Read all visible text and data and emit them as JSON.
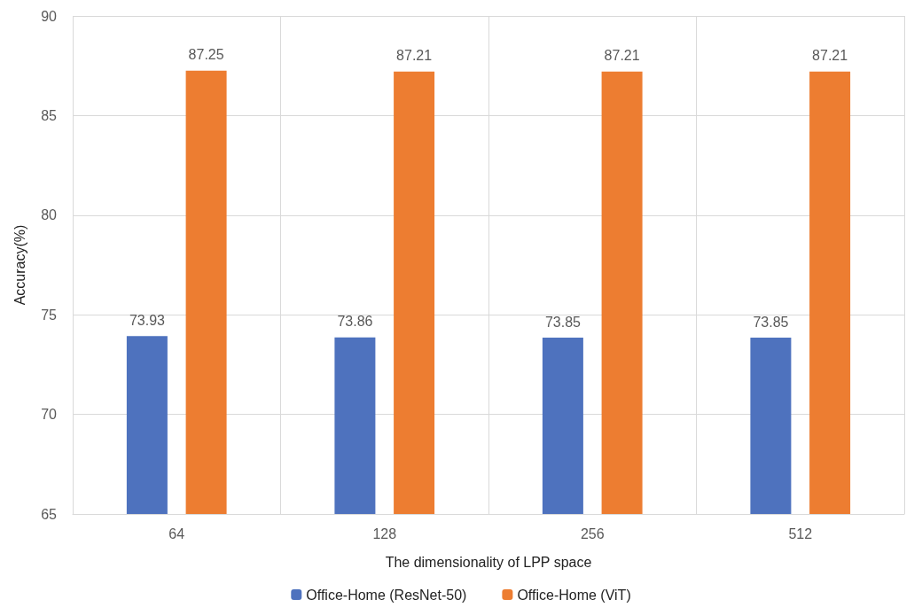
{
  "chart_data": {
    "type": "bar",
    "xlabel": "The dimensionality of LPP space",
    "ylabel": "Accuracy(%)",
    "categories": [
      "64",
      "128",
      "256",
      "512"
    ],
    "series": [
      {
        "name": "Office-Home (ResNet-50)",
        "color": "#4e72be",
        "values": [
          73.93,
          73.86,
          73.85,
          73.85
        ]
      },
      {
        "name": "Office-Home (ViT)",
        "color": "#ed7d31",
        "values": [
          87.25,
          87.21,
          87.21,
          87.21
        ]
      }
    ],
    "ylim": [
      65,
      90
    ],
    "yticks": [
      65,
      70,
      75,
      80,
      85,
      90
    ],
    "grid": true,
    "legend": "bottom",
    "data_labels": true
  }
}
